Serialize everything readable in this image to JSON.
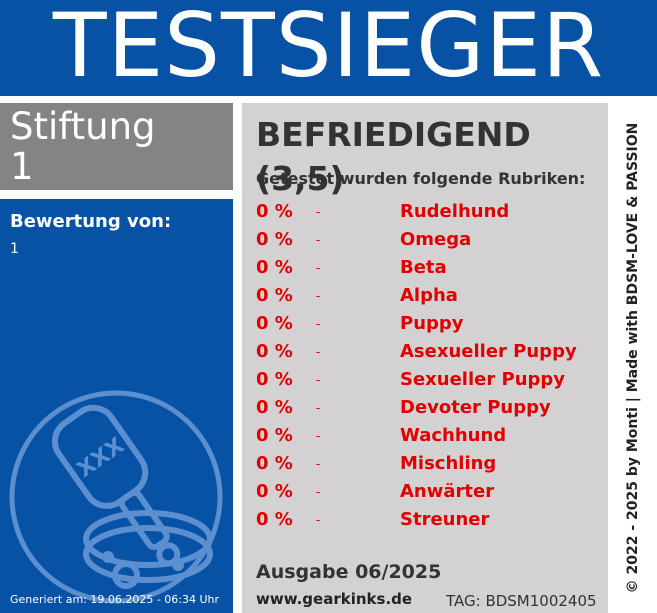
{
  "header": {
    "title": "TESTSIEGER"
  },
  "sidebar": {
    "org_line1": "Stiftung",
    "org_line2": "1",
    "bewertung_label": "Bewertung von:",
    "bewertung_value": "1",
    "generated": "Generiert am: 19.06.2025 - 06:34 Uhr",
    "emblem_icon": "paddle-and-collar-icon",
    "emblem_text": "XXX"
  },
  "main": {
    "rating": "BEFRIEDIGEND (3,5)",
    "subheading": "Getestet wurden folgende Rubriken:",
    "categories": [
      {
        "percent": "0 %",
        "dash": "-",
        "name": "Rudelhund"
      },
      {
        "percent": "0 %",
        "dash": "-",
        "name": "Omega"
      },
      {
        "percent": "0 %",
        "dash": "-",
        "name": "Beta"
      },
      {
        "percent": "0 %",
        "dash": "-",
        "name": "Alpha"
      },
      {
        "percent": "0 %",
        "dash": "-",
        "name": "Puppy"
      },
      {
        "percent": "0 %",
        "dash": "-",
        "name": "Asexueller Puppy"
      },
      {
        "percent": "0 %",
        "dash": "-",
        "name": "Sexueller Puppy"
      },
      {
        "percent": "0 %",
        "dash": "-",
        "name": "Devoter Puppy"
      },
      {
        "percent": "0 %",
        "dash": "-",
        "name": "Wachhund"
      },
      {
        "percent": "0 %",
        "dash": "-",
        "name": "Mischling"
      },
      {
        "percent": "0 %",
        "dash": "-",
        "name": "Anwärter"
      },
      {
        "percent": "0 %",
        "dash": "-",
        "name": "Streuner"
      }
    ],
    "issue": "Ausgabe 06/2025",
    "website": "www.gearkinks.de",
    "tag": "TAG: BDSM1002405"
  },
  "side": {
    "copyright": "© 2022 - 2025 by Monti | Made with BDSM-LOVE & PASSION"
  },
  "colors": {
    "brand_blue": "#0852a6",
    "gray": "#848484",
    "panel": "#d3d1d2",
    "accent_red": "#e00000"
  }
}
